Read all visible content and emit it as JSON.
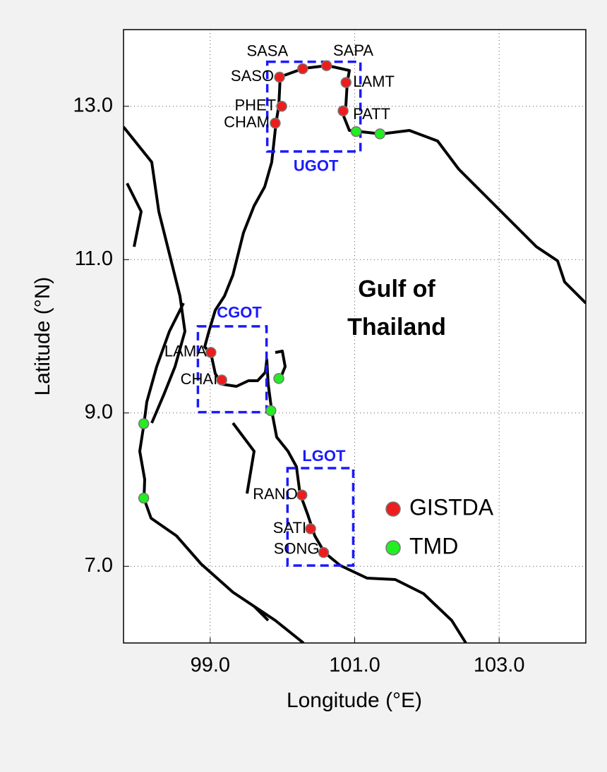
{
  "chart_data": {
    "type": "scatter",
    "xlabel": "Longitude (°E)",
    "ylabel": "Latitude (°N)",
    "xlim": [
      97.8,
      104.2
    ],
    "ylim": [
      6.0,
      14.0
    ],
    "xticks": [
      {
        "value": 99,
        "label": "99.0"
      },
      {
        "value": 101,
        "label": "101.0"
      },
      {
        "value": 103,
        "label": "103.0"
      }
    ],
    "yticks": [
      {
        "value": 7,
        "label": "7.0"
      },
      {
        "value": 9,
        "label": "9.0"
      },
      {
        "value": 11,
        "label": "11.0"
      },
      {
        "value": 13,
        "label": "13.0"
      }
    ],
    "grid": true,
    "region_label": [
      "Gulf of",
      "Thailand"
    ],
    "boxes": [
      {
        "name": "UGOT",
        "x": [
          99.79,
          101.08
        ],
        "y": [
          12.41,
          13.58
        ],
        "color": "#1a1aff"
      },
      {
        "name": "CGOT",
        "x": [
          98.83,
          99.78
        ],
        "y": [
          9.01,
          10.13
        ],
        "color": "#1a1aff"
      },
      {
        "name": "LGOT",
        "x": [
          100.07,
          100.98
        ],
        "y": [
          7.01,
          8.28
        ],
        "color": "#1a1aff"
      }
    ],
    "series": [
      {
        "name": "GISTDA",
        "color": "#ee1c1c",
        "labels": [
          "SASA",
          "SAPA",
          "SASO",
          "LAMT",
          "PHET",
          "PATT",
          "CHAM",
          "LAMA",
          "CHAI",
          "RANO",
          "SATI",
          "SONG"
        ],
        "x": [
          100.28,
          100.61,
          99.96,
          100.88,
          99.99,
          100.84,
          99.9,
          99.01,
          99.16,
          100.27,
          100.39,
          100.57
        ],
        "y": [
          13.49,
          13.53,
          13.38,
          13.31,
          13.0,
          12.94,
          12.78,
          9.79,
          9.43,
          7.93,
          7.49,
          7.18
        ]
      },
      {
        "name": "TMD",
        "color": "#22ee22",
        "x": [
          101.02,
          101.35,
          99.95,
          99.84,
          98.08,
          98.08
        ],
        "y": [
          12.67,
          12.64,
          9.45,
          9.03,
          8.86,
          7.89
        ]
      }
    ],
    "legend": "lower-right"
  }
}
